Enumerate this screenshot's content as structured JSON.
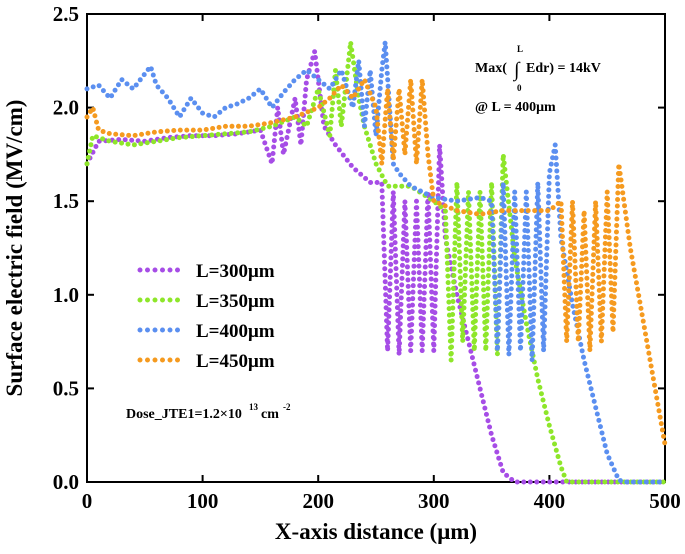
{
  "chart_data": {
    "type": "line",
    "xlabel": "X-axis distance (μm)",
    "ylabel": "Surface electric field (MV/cm)",
    "xlim": [
      0,
      500
    ],
    "ylim": [
      0,
      2.5
    ],
    "xticks": [
      0,
      100,
      200,
      300,
      400,
      500
    ],
    "yticks": [
      {
        "value": 0,
        "label": "0.0"
      },
      0.5,
      {
        "value": 1,
        "label": "1.0"
      },
      1.5,
      {
        "value": 2,
        "label": "2.0"
      },
      2.5
    ],
    "annotations": [
      "Max(",
      "∫",
      "Edr) = 14kV",
      "L",
      "0",
      "@ L = 400μm",
      "Dose_JTE1=1.2×10",
      "13",
      "cm",
      "-2"
    ],
    "legend": "left",
    "series": [
      {
        "name": "L=300μm",
        "color": "#a64de6",
        "x": [
          0,
          10,
          30,
          50,
          70,
          90,
          110,
          130,
          150,
          160,
          165,
          170,
          180,
          185,
          190,
          197,
          205,
          215,
          230,
          245,
          255,
          260,
          265,
          270,
          275,
          280,
          285,
          290,
          295,
          300,
          305,
          310,
          320,
          330,
          340,
          350,
          360,
          370,
          400,
          500
        ],
        "values": [
          1.7,
          1.82,
          1.83,
          1.82,
          1.84,
          1.85,
          1.85,
          1.86,
          1.88,
          1.7,
          2.0,
          1.75,
          2.05,
          1.8,
          2.15,
          2.3,
          1.9,
          1.8,
          1.68,
          1.6,
          1.6,
          0.7,
          1.55,
          0.68,
          1.5,
          0.7,
          1.5,
          0.7,
          1.55,
          0.7,
          1.8,
          1.3,
          1.0,
          0.75,
          0.5,
          0.25,
          0.05,
          0.0,
          0.0,
          0.0
        ]
      },
      {
        "name": "L=350μm",
        "color": "#8ee62a",
        "x": [
          0,
          5,
          20,
          40,
          60,
          80,
          100,
          120,
          140,
          160,
          180,
          190,
          200,
          210,
          215,
          220,
          228,
          235,
          240,
          250,
          260,
          280,
          300,
          310,
          315,
          320,
          325,
          330,
          335,
          340,
          345,
          350,
          355,
          360,
          370,
          380,
          390,
          400,
          410,
          415,
          500
        ],
        "values": [
          1.7,
          1.85,
          1.82,
          1.8,
          1.82,
          1.84,
          1.85,
          1.86,
          1.87,
          1.9,
          1.95,
          1.9,
          2.1,
          1.85,
          2.2,
          1.9,
          2.35,
          2.05,
          1.9,
          1.7,
          1.58,
          1.58,
          1.5,
          1.45,
          0.65,
          1.6,
          0.75,
          1.55,
          0.7,
          1.55,
          0.7,
          1.6,
          0.68,
          1.75,
          1.2,
          0.85,
          0.55,
          0.3,
          0.08,
          0.0,
          0.0
        ]
      },
      {
        "name": "L=400μm",
        "color": "#5b8ff0",
        "x": [
          0,
          10,
          20,
          30,
          40,
          50,
          55,
          60,
          70,
          80,
          90,
          100,
          110,
          120,
          130,
          140,
          150,
          160,
          170,
          180,
          190,
          200,
          210,
          220,
          230,
          235,
          240,
          245,
          250,
          255,
          258,
          265,
          270,
          280,
          300,
          320,
          340,
          350,
          355,
          360,
          365,
          370,
          375,
          380,
          385,
          390,
          395,
          400,
          405,
          410,
          420,
          430,
          440,
          450,
          460,
          465,
          500
        ],
        "values": [
          2.1,
          2.12,
          2.05,
          2.15,
          2.1,
          2.18,
          2.22,
          2.12,
          2.05,
          1.95,
          2.05,
          1.97,
          1.95,
          2.0,
          2.02,
          2.05,
          2.1,
          2.0,
          2.08,
          2.15,
          2.2,
          2.15,
          2.1,
          2.2,
          2.0,
          2.25,
          1.9,
          2.2,
          1.85,
          2.2,
          2.35,
          1.7,
          1.65,
          1.58,
          1.52,
          1.5,
          1.52,
          1.5,
          0.7,
          1.6,
          0.68,
          1.55,
          0.7,
          1.55,
          0.65,
          1.6,
          0.7,
          1.65,
          1.8,
          1.3,
          0.95,
          0.65,
          0.4,
          0.15,
          0.01,
          0.0,
          0.0
        ]
      },
      {
        "name": "L=450μm",
        "color": "#f59a1f",
        "x": [
          0,
          5,
          10,
          20,
          40,
          60,
          80,
          100,
          120,
          140,
          160,
          180,
          200,
          210,
          220,
          230,
          240,
          250,
          255,
          260,
          265,
          270,
          275,
          280,
          285,
          290,
          295,
          300,
          320,
          340,
          360,
          380,
          400,
          410,
          415,
          420,
          425,
          430,
          435,
          440,
          445,
          450,
          455,
          460,
          470,
          480,
          490,
          500
        ],
        "values": [
          1.95,
          2.0,
          1.88,
          1.86,
          1.85,
          1.87,
          1.88,
          1.88,
          1.9,
          1.9,
          1.92,
          1.95,
          2.0,
          2.05,
          2.12,
          2.05,
          2.15,
          2.0,
          1.7,
          2.1,
          1.72,
          2.1,
          1.75,
          2.15,
          1.7,
          2.15,
          1.75,
          1.5,
          1.45,
          1.43,
          1.45,
          1.45,
          1.45,
          1.5,
          0.75,
          1.5,
          0.75,
          1.45,
          0.7,
          1.5,
          0.75,
          1.55,
          0.8,
          1.7,
          1.25,
          0.9,
          0.55,
          0.2
        ]
      }
    ]
  }
}
